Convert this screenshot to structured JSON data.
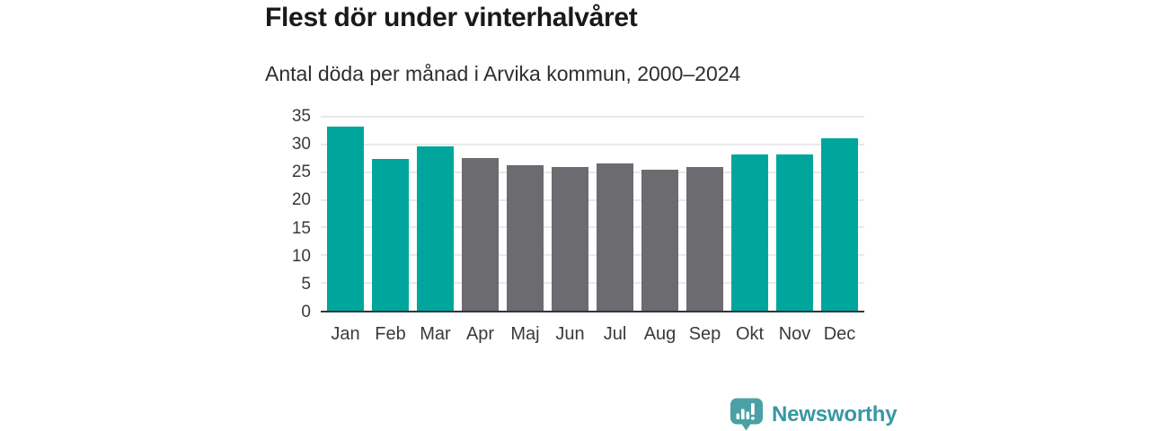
{
  "header": {
    "title": "Flest dör under vinterhalvåret",
    "subtitle": "Antal döda per månad i Arvika kommun, 2000–2024"
  },
  "chart_data": {
    "type": "bar",
    "title": "Flest dör under vinterhalvåret",
    "subtitle": "Antal döda per månad i Arvika kommun, 2000–2024",
    "categories": [
      "Jan",
      "Feb",
      "Mar",
      "Apr",
      "Maj",
      "Jun",
      "Jul",
      "Aug",
      "Sep",
      "Okt",
      "Nov",
      "Dec"
    ],
    "values": [
      33.2,
      27.4,
      29.7,
      27.6,
      26.2,
      26.0,
      26.5,
      25.5,
      25.9,
      28.2,
      28.2,
      31.1
    ],
    "highlighted_months": [
      "Jan",
      "Feb",
      "Mar",
      "Okt",
      "Nov",
      "Dec"
    ],
    "highlight_color": "#00a69c",
    "base_color": "#6b6b70",
    "xlabel": "",
    "ylabel": "",
    "ylim": [
      0,
      35
    ],
    "yticks": [
      0,
      5,
      10,
      15,
      20,
      25,
      30,
      35
    ],
    "grid": true,
    "legend": "none"
  },
  "branding": {
    "label": "Newsworthy",
    "icon": "newsworthy-logo-icon",
    "text_color": "#3898a2",
    "icon_color": "#4aa0a5"
  },
  "style": {
    "grid_color": "#e9e9e9",
    "axis_color": "#32353c",
    "title_color": "#191919",
    "tick_color": "#3a3a3a"
  }
}
